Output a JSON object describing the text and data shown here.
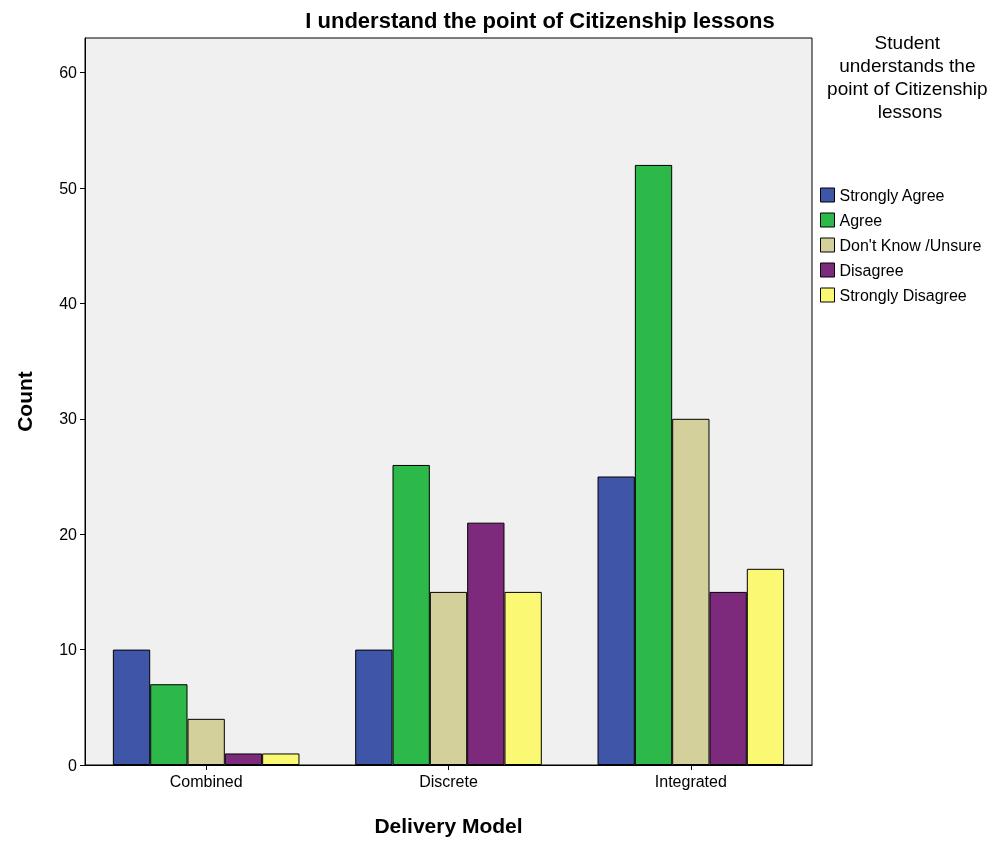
{
  "chart_data": {
    "type": "bar",
    "title": "I understand the point of Citizenship lessons",
    "xlabel": "Delivery Model",
    "ylabel": "Count",
    "legend_title": "Student understands the point of Citizenship lessons",
    "categories": [
      "Combined",
      "Discrete",
      "Integrated"
    ],
    "series": [
      {
        "name": "Strongly Agree",
        "color": "#3f56a8",
        "values": [
          10,
          10,
          25
        ]
      },
      {
        "name": "Agree",
        "color": "#2db84a",
        "values": [
          7,
          26,
          52
        ]
      },
      {
        "name": "Don't Know /Unsure",
        "color": "#d4d09b",
        "values": [
          4,
          15,
          30
        ]
      },
      {
        "name": "Disagree",
        "color": "#7e2a7c",
        "values": [
          1,
          21,
          15
        ]
      },
      {
        "name": "Strongly Disagree",
        "color": "#fbf873",
        "values": [
          1,
          15,
          17
        ]
      }
    ],
    "ylim": [
      0,
      63
    ],
    "yticks": [
      0,
      10,
      20,
      30,
      40,
      50,
      60
    ],
    "grid": false,
    "legend": "top right"
  }
}
